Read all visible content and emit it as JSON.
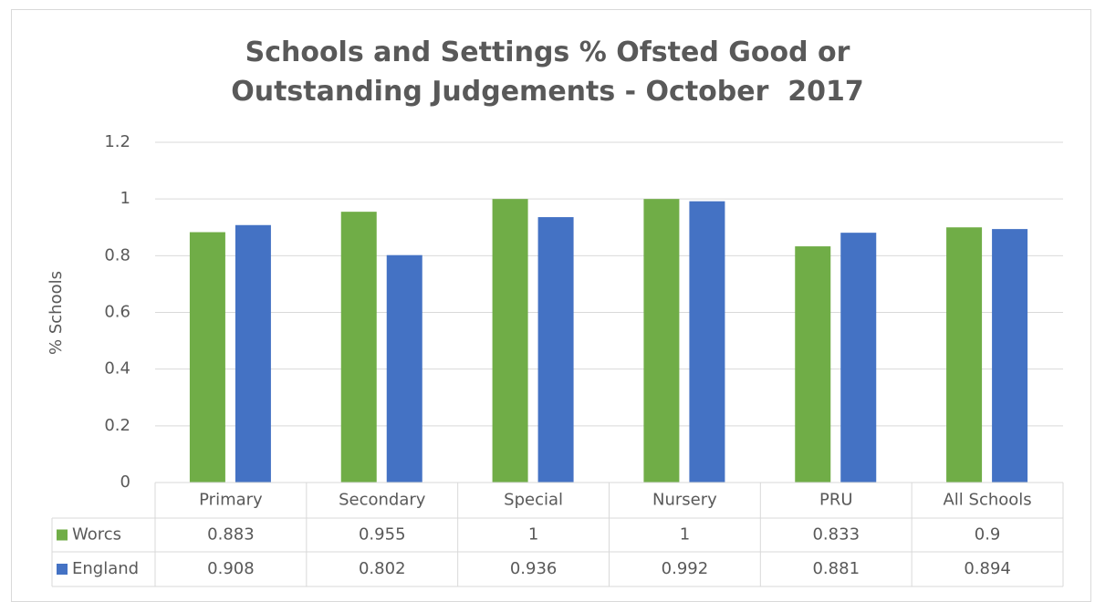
{
  "chart_data": {
    "type": "bar",
    "title": "Schools and Settings % Ofsted Good or Outstanding Judgements - October  2017",
    "y_label": "% Schools",
    "categories": [
      "Primary",
      "Secondary",
      "Special",
      "Nursery",
      "PRU",
      "All Schools"
    ],
    "series": [
      {
        "name": "Worcs",
        "color": "#70ad47",
        "values": [
          0.883,
          0.955,
          1,
          1,
          0.833,
          0.9
        ]
      },
      {
        "name": "England",
        "color": "#4472c4",
        "values": [
          0.908,
          0.802,
          0.936,
          0.992,
          0.881,
          0.894
        ]
      }
    ],
    "ylim": [
      0,
      1.2
    ],
    "yticks": [
      0,
      0.2,
      0.4,
      0.6,
      0.8,
      1,
      1.2
    ],
    "grid": true,
    "data_table": true
  }
}
